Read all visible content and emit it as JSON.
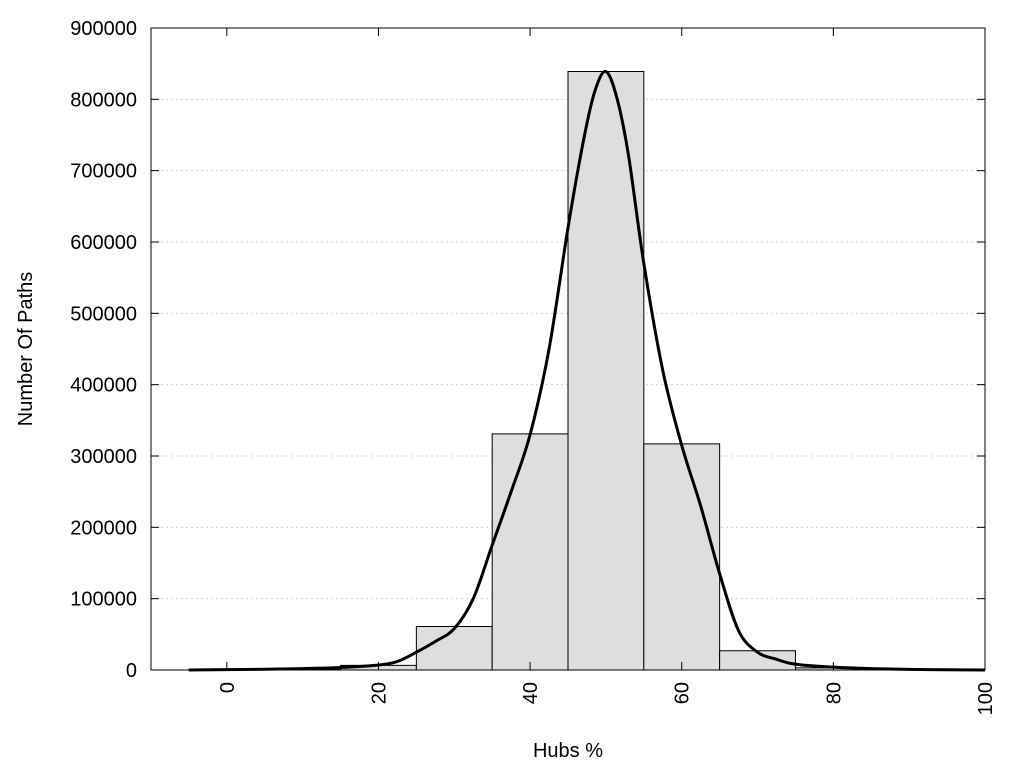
{
  "chart_data": {
    "type": "bar",
    "title": "",
    "xlabel": "Hubs %",
    "ylabel": "Number Of Paths",
    "xlim": [
      -10,
      100
    ],
    "ylim": [
      0,
      900000
    ],
    "x_ticks": [
      0,
      20,
      40,
      60,
      80,
      100
    ],
    "y_ticks": [
      0,
      100000,
      200000,
      300000,
      400000,
      500000,
      600000,
      700000,
      800000,
      900000
    ],
    "grid": {
      "y": true,
      "x": false,
      "style": "dotted"
    },
    "bar_color": "#dedede",
    "line_color": "#000000",
    "bins": [
      {
        "x0": -5,
        "x1": 5,
        "value": 800
      },
      {
        "x0": 5,
        "x1": 15,
        "value": 1500
      },
      {
        "x0": 15,
        "x1": 25,
        "value": 6500
      },
      {
        "x0": 25,
        "x1": 35,
        "value": 61000
      },
      {
        "x0": 35,
        "x1": 45,
        "value": 331000
      },
      {
        "x0": 45,
        "x1": 55,
        "value": 839000
      },
      {
        "x0": 55,
        "x1": 65,
        "value": 317000
      },
      {
        "x0": 65,
        "x1": 75,
        "value": 27000
      },
      {
        "x0": 75,
        "x1": 85,
        "value": 3000
      },
      {
        "x0": 85,
        "x1": 95,
        "value": 500
      },
      {
        "x0": 95,
        "x1": 105,
        "value": 100
      }
    ],
    "curve": {
      "x": [
        -5,
        0,
        5,
        10,
        15,
        20,
        22.5,
        25,
        27.5,
        30,
        32.5,
        35,
        37.5,
        40,
        42.5,
        45,
        47,
        48.5,
        50,
        51.5,
        53,
        55,
        57.5,
        60,
        62.5,
        65,
        67.5,
        70,
        72.5,
        75,
        80,
        85,
        90,
        95,
        100
      ],
      "y": [
        0,
        500,
        1000,
        2000,
        3500,
        7000,
        12000,
        25000,
        40000,
        58000,
        100000,
        175000,
        250000,
        330000,
        450000,
        620000,
        740000,
        810000,
        839000,
        800000,
        720000,
        570000,
        420000,
        315000,
        230000,
        135000,
        55000,
        25000,
        15000,
        8000,
        4000,
        2000,
        800,
        300,
        0
      ]
    }
  }
}
